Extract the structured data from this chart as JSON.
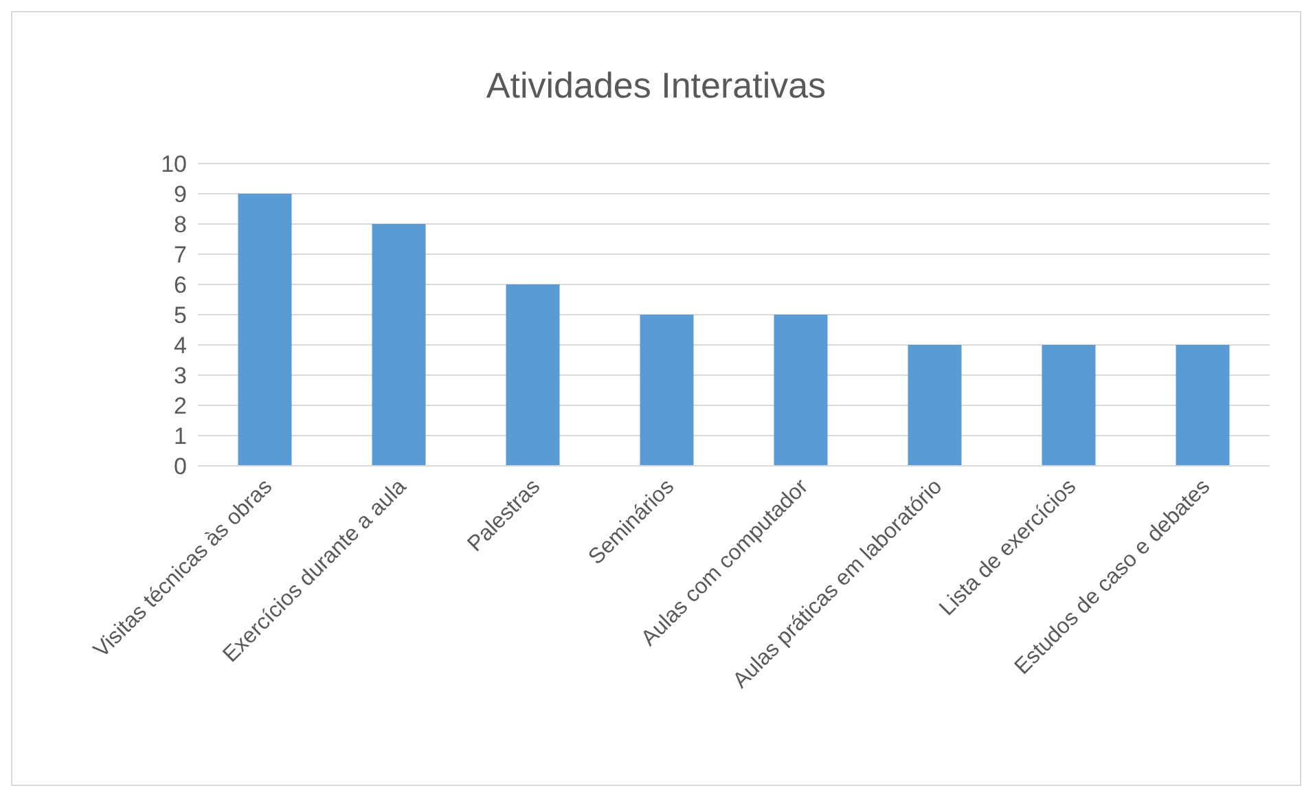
{
  "chart_data": {
    "type": "bar",
    "title": "Atividades Interativas",
    "categories": [
      "Visitas técnicas às obras",
      "Exercícios durante a aula",
      "Palestras",
      "Seminários",
      "Aulas com computador",
      "Aulas práticas em laboratório",
      "Lista de exercícios",
      "Estudos de caso e debates"
    ],
    "values": [
      9,
      8,
      6,
      5,
      5,
      4,
      4,
      4
    ],
    "color": "#5b9bd5",
    "ylim": [
      0,
      10
    ],
    "yticks": [
      0,
      1,
      2,
      3,
      4,
      5,
      6,
      7,
      8,
      9,
      10
    ],
    "grid": "y"
  }
}
